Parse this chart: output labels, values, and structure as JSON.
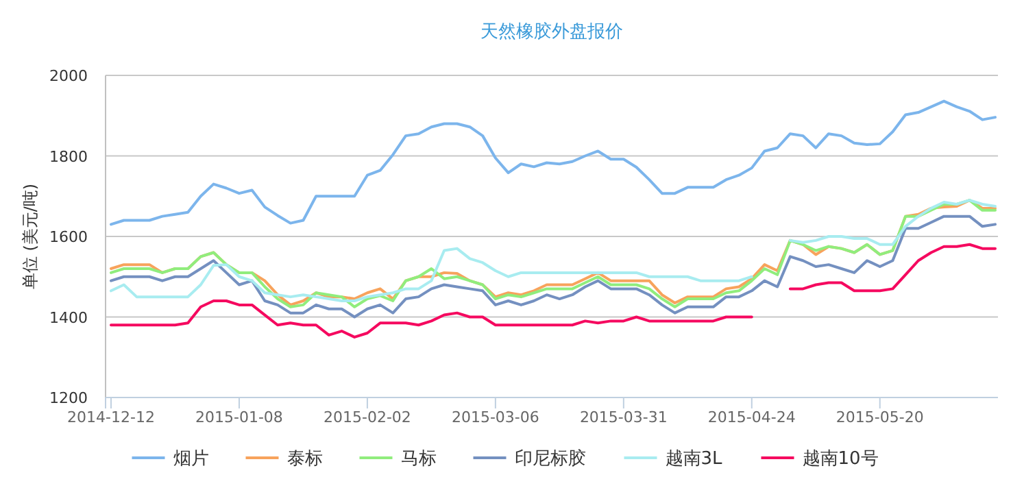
{
  "chart_data": {
    "type": "line",
    "title": "天然橡胶外盘报价",
    "ylabel": "单位 (美元/吨)",
    "categories": [
      "2014-12-12",
      null,
      null,
      null,
      null,
      null,
      null,
      null,
      null,
      null,
      "2015-01-08",
      null,
      null,
      null,
      null,
      null,
      null,
      null,
      null,
      null,
      "2015-02-02",
      null,
      null,
      null,
      null,
      null,
      null,
      null,
      null,
      null,
      "2015-03-06",
      null,
      null,
      null,
      null,
      null,
      null,
      null,
      null,
      null,
      "2015-03-31",
      null,
      null,
      null,
      null,
      null,
      null,
      null,
      null,
      null,
      "2015-04-24",
      null,
      null,
      null,
      null,
      null,
      null,
      null,
      null,
      null,
      "2015-05-20",
      null,
      null,
      null,
      null,
      null,
      null,
      null,
      null,
      null
    ],
    "ylim": [
      1200,
      2000
    ],
    "yticks": [
      1200,
      1400,
      1600,
      1800,
      2000
    ],
    "grid": "y",
    "legend": "bottom",
    "series": [
      {
        "name": "烟片",
        "color": "#7cb5ec",
        "values": [
          1630,
          1640,
          1640,
          1640,
          1650,
          1655,
          1660,
          1700,
          1730,
          1720,
          1707,
          1715,
          1673,
          1652,
          1633,
          1640,
          1700,
          1700,
          1700,
          1700,
          1752,
          1764,
          1803,
          1850,
          1855,
          1872,
          1880,
          1880,
          1872,
          1850,
          1795,
          1758,
          1780,
          1773,
          1783,
          1780,
          1786,
          1800,
          1812,
          1792,
          1792,
          1772,
          1741,
          1707,
          1707,
          1722,
          1722,
          1722,
          1741,
          1752,
          1770,
          1812,
          1820,
          1855,
          1850,
          1820,
          1855,
          1850,
          1832,
          1828,
          1830,
          1860,
          1902,
          1908,
          1922,
          1936,
          1922,
          1911,
          1890,
          1896
        ]
      },
      {
        "name": "泰标",
        "color": "#f7a35c",
        "values": [
          1520,
          1530,
          1530,
          1530,
          1510,
          1520,
          1520,
          1550,
          1560,
          1530,
          1510,
          1510,
          1490,
          1455,
          1430,
          1440,
          1460,
          1450,
          1450,
          1445,
          1460,
          1470,
          1445,
          1490,
          1500,
          1500,
          1510,
          1508,
          1490,
          1480,
          1450,
          1460,
          1455,
          1465,
          1480,
          1480,
          1480,
          1495,
          1510,
          1490,
          1490,
          1490,
          1490,
          1455,
          1435,
          1450,
          1450,
          1450,
          1470,
          1475,
          1495,
          1530,
          1515,
          1590,
          1580,
          1555,
          1575,
          1570,
          1560,
          1580,
          1555,
          1565,
          1650,
          1655,
          1670,
          1673,
          1675,
          1690,
          1670,
          1670
        ]
      },
      {
        "name": "马标",
        "color": "#90ed7d",
        "values": [
          1510,
          1520,
          1520,
          1520,
          1510,
          1520,
          1520,
          1550,
          1560,
          1530,
          1510,
          1510,
          1475,
          1445,
          1425,
          1430,
          1460,
          1455,
          1450,
          1425,
          1445,
          1453,
          1440,
          1490,
          1500,
          1520,
          1495,
          1500,
          1490,
          1480,
          1445,
          1455,
          1450,
          1460,
          1470,
          1470,
          1470,
          1485,
          1500,
          1480,
          1480,
          1480,
          1470,
          1445,
          1425,
          1445,
          1445,
          1445,
          1460,
          1465,
          1490,
          1520,
          1505,
          1590,
          1580,
          1565,
          1575,
          1570,
          1560,
          1580,
          1555,
          1565,
          1650,
          1650,
          1665,
          1680,
          1680,
          1690,
          1665,
          1665
        ]
      },
      {
        "name": "印尼标胶",
        "color": "#7490c0",
        "values": [
          1490,
          1500,
          1500,
          1500,
          1490,
          1500,
          1500,
          1520,
          1540,
          1510,
          1480,
          1490,
          1440,
          1430,
          1410,
          1410,
          1430,
          1420,
          1420,
          1400,
          1420,
          1430,
          1410,
          1445,
          1450,
          1470,
          1480,
          1475,
          1470,
          1465,
          1430,
          1440,
          1430,
          1440,
          1455,
          1445,
          1455,
          1475,
          1490,
          1470,
          1470,
          1470,
          1455,
          1430,
          1410,
          1425,
          1425,
          1425,
          1450,
          1450,
          1465,
          1490,
          1475,
          1550,
          1540,
          1525,
          1530,
          1520,
          1510,
          1540,
          1525,
          1540,
          1620,
          1620,
          1635,
          1650,
          1650,
          1650,
          1625,
          1630
        ]
      },
      {
        "name": "越南3L",
        "color": "#a8ecf0",
        "values": [
          1465,
          1480,
          1450,
          1450,
          1450,
          1450,
          1450,
          1480,
          1528,
          1530,
          1500,
          1490,
          1460,
          1455,
          1450,
          1455,
          1450,
          1445,
          1440,
          1440,
          1450,
          1455,
          1460,
          1470,
          1470,
          1490,
          1565,
          1570,
          1545,
          1535,
          1515,
          1500,
          1510,
          1510,
          1510,
          1510,
          1510,
          1510,
          1510,
          1510,
          1510,
          1510,
          1500,
          1500,
          1500,
          1500,
          1490,
          1490,
          1490,
          1490,
          1500,
          null,
          null,
          1590,
          1585,
          1590,
          1600,
          1600,
          1595,
          1595,
          1580,
          1580,
          1625,
          1650,
          1670,
          1685,
          1680,
          1690,
          1680,
          1675
        ]
      },
      {
        "name": "越南10号",
        "color": "#f5095f",
        "values": [
          1380,
          1380,
          1380,
          1380,
          1380,
          1380,
          1385,
          1425,
          1440,
          1440,
          1430,
          1430,
          1405,
          1380,
          1385,
          1380,
          1380,
          1355,
          1365,
          1350,
          1360,
          1385,
          1385,
          1385,
          1380,
          1390,
          1405,
          1410,
          1400,
          1400,
          1380,
          1380,
          1380,
          1380,
          1380,
          1380,
          1380,
          1390,
          1385,
          1390,
          1390,
          1400,
          1390,
          1390,
          1390,
          1390,
          1390,
          1390,
          1400,
          1400,
          1400,
          null,
          null,
          1470,
          1470,
          1480,
          1485,
          1485,
          1465,
          1465,
          1465,
          1470,
          1505,
          1540,
          1560,
          1575,
          1575,
          1580,
          1570,
          1570
        ]
      }
    ]
  }
}
